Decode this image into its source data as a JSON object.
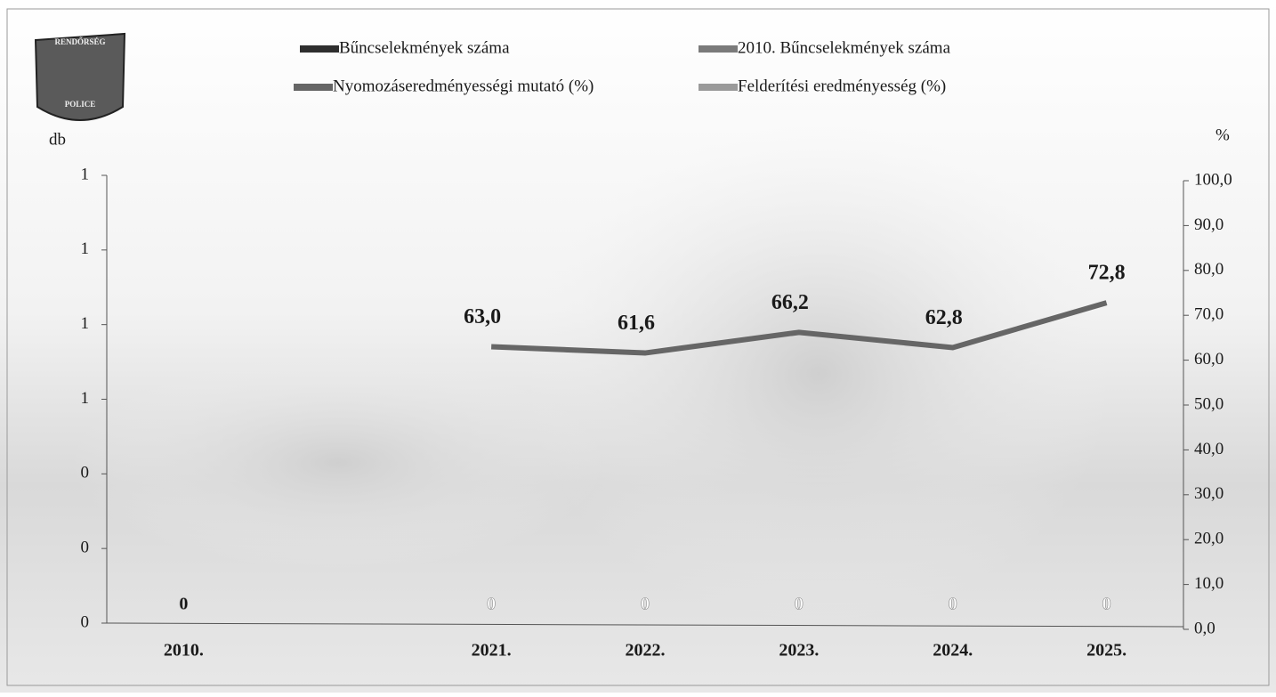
{
  "logo": {
    "top": "RENDŐRSÉG",
    "bottom": "POLICE"
  },
  "chart_data": {
    "type": "bar_line",
    "y_axis_label": "db",
    "y2_axis_label": "%",
    "categories": [
      "2010.",
      null,
      "2021.",
      "2022.",
      "2023.",
      "2024.",
      "2025."
    ],
    "ylim": [
      0,
      1.2
    ],
    "yticks": [
      0,
      {
        "value": 0.2,
        "label": "0"
      },
      {
        "value": 0.4,
        "label": "0"
      },
      {
        "value": 0.6,
        "label": "1"
      },
      {
        "value": 0.8,
        "label": "1"
      },
      {
        "value": 1.0,
        "label": "1"
      },
      {
        "value": 1.2,
        "label": "1"
      }
    ],
    "y2lim": [
      0,
      100
    ],
    "y2ticks": [
      {
        "value": 0,
        "label": "0,0"
      },
      {
        "value": 10,
        "label": "10,0"
      },
      {
        "value": 20,
        "label": "20,0"
      },
      {
        "value": 30,
        "label": "30,0"
      },
      {
        "value": 40,
        "label": "40,0"
      },
      {
        "value": 50,
        "label": "50,0"
      },
      {
        "value": 60,
        "label": "60,0"
      },
      {
        "value": 70,
        "label": "70,0"
      },
      {
        "value": 80,
        "label": "80,0"
      },
      {
        "value": 90,
        "label": "90,0"
      },
      {
        "value": 100,
        "label": "100,0"
      }
    ],
    "series": [
      {
        "name": "Bűncselekmények száma",
        "kind": "bar",
        "color": "#2e2e2e",
        "label_color": "#ffffff",
        "values": [
          null,
          null,
          0,
          0,
          0,
          0,
          0
        ]
      },
      {
        "name": "2010. Bűncselekmények száma",
        "kind": "bar",
        "color": "#7a7a7a",
        "label_color": "#111111",
        "values": [
          0,
          null,
          null,
          null,
          null,
          null,
          null
        ]
      },
      {
        "name": "Nyomozáseredményességi mutató (%)",
        "kind": "line",
        "axis": "y2",
        "color": "#666666",
        "values": [
          null,
          null,
          63.0,
          61.6,
          66.2,
          62.8,
          72.8
        ],
        "value_labels": [
          null,
          null,
          "63,0",
          "61,6",
          "66,2",
          "62,8",
          "72,8"
        ]
      },
      {
        "name": "Felderítési eredményesség (%)",
        "kind": "line",
        "axis": "y2",
        "color": "#9a9a9a",
        "values": [
          null,
          null,
          null,
          null,
          null,
          null,
          null
        ]
      }
    ]
  }
}
